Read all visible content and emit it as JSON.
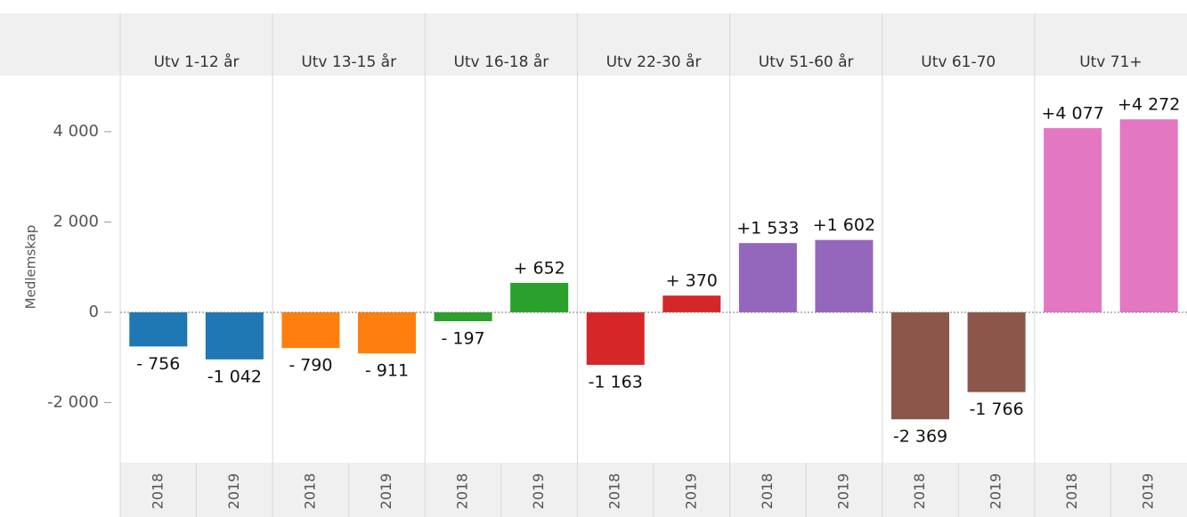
{
  "chart_data": {
    "type": "bar",
    "y_label": "Medlemskap",
    "groups": [
      {
        "name": "Utv 1-12 år",
        "color": "#1f77b4",
        "categories": [
          "2018",
          "2019"
        ],
        "values": [
          -756,
          -1042
        ],
        "value_labels": [
          "- 756",
          "-1 042"
        ]
      },
      {
        "name": "Utv 13-15 år",
        "color": "#ff7f0e",
        "categories": [
          "2018",
          "2019"
        ],
        "values": [
          -790,
          -911
        ],
        "value_labels": [
          "- 790",
          "- 911"
        ]
      },
      {
        "name": "Utv 16-18 år",
        "color": "#2ca02c",
        "categories": [
          "2018",
          "2019"
        ],
        "values": [
          -197,
          652
        ],
        "value_labels": [
          "- 197",
          "+ 652"
        ]
      },
      {
        "name": "Utv 22-30 år",
        "color": "#d62728",
        "categories": [
          "2018",
          "2019"
        ],
        "values": [
          -1163,
          370
        ],
        "value_labels": [
          "-1 163",
          "+ 370"
        ]
      },
      {
        "name": "Utv 51-60 år",
        "color": "#9467bd",
        "categories": [
          "2018",
          "2019"
        ],
        "values": [
          1533,
          1602
        ],
        "value_labels": [
          "+1 533",
          "+1 602"
        ]
      },
      {
        "name": "Utv 61-70",
        "color": "#8c564b",
        "categories": [
          "2018",
          "2019"
        ],
        "values": [
          -2369,
          -1766
        ],
        "value_labels": [
          "-2 369",
          "-1 766"
        ]
      },
      {
        "name": "Utv 71+",
        "color": "#e377c2",
        "categories": [
          "2018",
          "2019"
        ],
        "values": [
          4077,
          4272
        ],
        "value_labels": [
          "+4 077",
          "+4 272"
        ]
      }
    ],
    "ylim": [
      -3330,
      5240
    ],
    "yticks": [
      {
        "value": -2000,
        "label": "-2 000"
      },
      0,
      {
        "value": 2000,
        "label": "2 000"
      },
      {
        "value": 4000,
        "label": "4 000"
      }
    ],
    "zero_line": true
  }
}
